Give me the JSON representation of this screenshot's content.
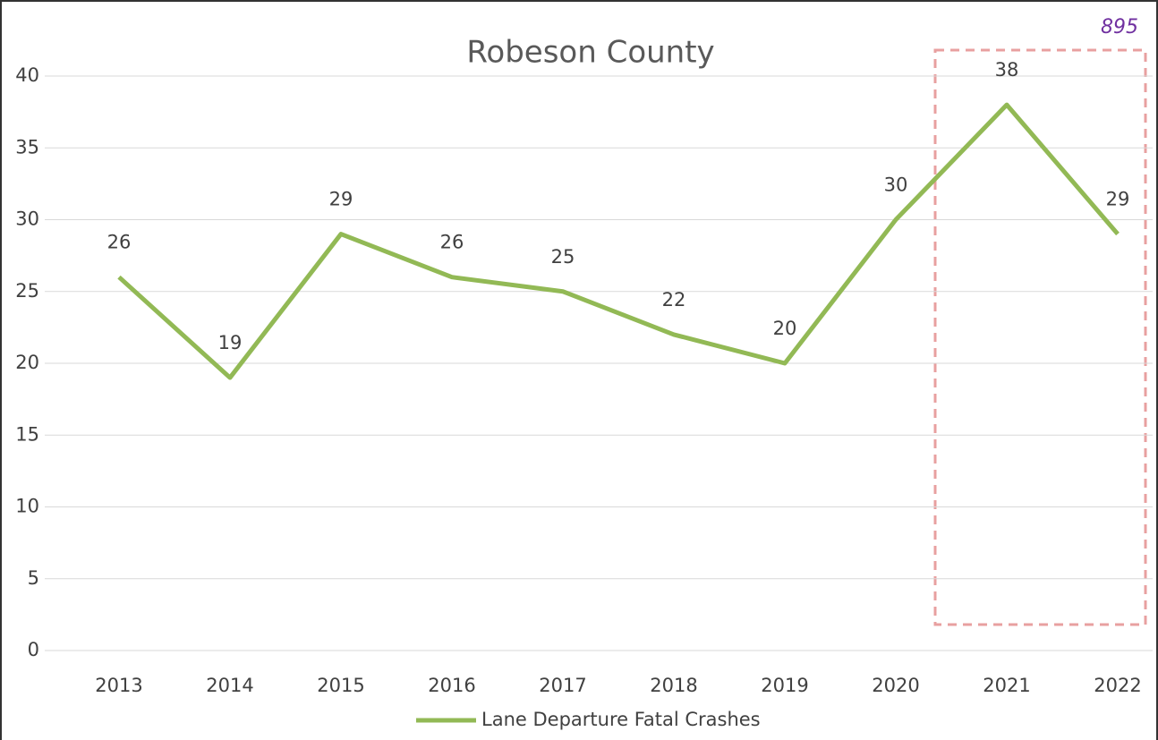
{
  "chart_data": {
    "type": "line",
    "title": "Robeson County",
    "categories": [
      "2013",
      "2014",
      "2015",
      "2016",
      "2017",
      "2018",
      "2019",
      "2020",
      "2021",
      "2022"
    ],
    "series": [
      {
        "name": "Lane Departure Fatal Crashes",
        "color": "#92b955",
        "values": [
          26,
          19,
          29,
          26,
          25,
          22,
          20,
          30,
          38,
          29
        ]
      }
    ],
    "ylim": [
      0,
      40
    ],
    "yticks": [
      0,
      5,
      10,
      15,
      20,
      25,
      30,
      35,
      40
    ],
    "grid": true,
    "annotation": "895",
    "legend": "bottom"
  }
}
